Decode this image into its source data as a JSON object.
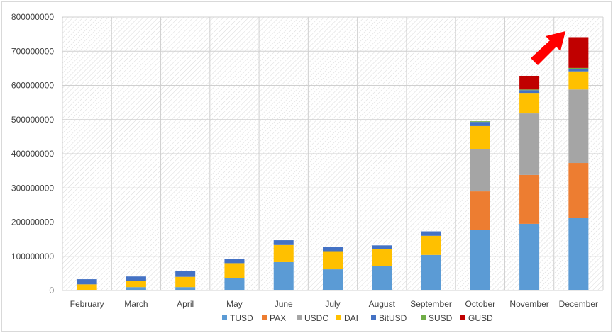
{
  "chart_data": {
    "type": "bar",
    "stacked": true,
    "categories": [
      "February",
      "March",
      "April",
      "May",
      "June",
      "July",
      "August",
      "September",
      "October",
      "November",
      "December"
    ],
    "series": [
      {
        "name": "TUSD",
        "color": "#5b9bd5",
        "values": [
          0,
          10000000,
          10000000,
          37000000,
          83000000,
          62000000,
          71000000,
          104000000,
          177000000,
          195000000,
          213000000
        ]
      },
      {
        "name": "PAX",
        "color": "#ed7d31",
        "values": [
          0,
          0,
          0,
          0,
          0,
          0,
          0,
          0,
          113000000,
          143000000,
          160000000
        ]
      },
      {
        "name": "USDC",
        "color": "#a5a5a5",
        "values": [
          0,
          0,
          0,
          0,
          0,
          0,
          0,
          0,
          123000000,
          180000000,
          215000000
        ]
      },
      {
        "name": "DAI",
        "color": "#ffc000",
        "values": [
          18000000,
          18000000,
          30000000,
          43000000,
          50000000,
          53000000,
          50000000,
          56000000,
          68000000,
          60000000,
          53000000
        ]
      },
      {
        "name": "BitUSD",
        "color": "#4472c4",
        "values": [
          15000000,
          13000000,
          18000000,
          12000000,
          14000000,
          13000000,
          11000000,
          13000000,
          12000000,
          8000000,
          7000000
        ]
      },
      {
        "name": "SUSD",
        "color": "#70ad47",
        "values": [
          0,
          0,
          0,
          0,
          0,
          0,
          0,
          0,
          2000000,
          2000000,
          3000000
        ]
      },
      {
        "name": "GUSD",
        "color": "#c00000",
        "values": [
          0,
          0,
          0,
          0,
          0,
          0,
          0,
          0,
          0,
          40000000,
          90000000
        ]
      }
    ],
    "y_ticks": [
      "0",
      "100000000",
      "200000000",
      "300000000",
      "400000000",
      "500000000",
      "600000000",
      "700000000",
      "800000000"
    ],
    "ylim": [
      0,
      800000000
    ],
    "grid": true,
    "legend": "bottom",
    "annotation": "red-arrow-pointing-up-right"
  }
}
